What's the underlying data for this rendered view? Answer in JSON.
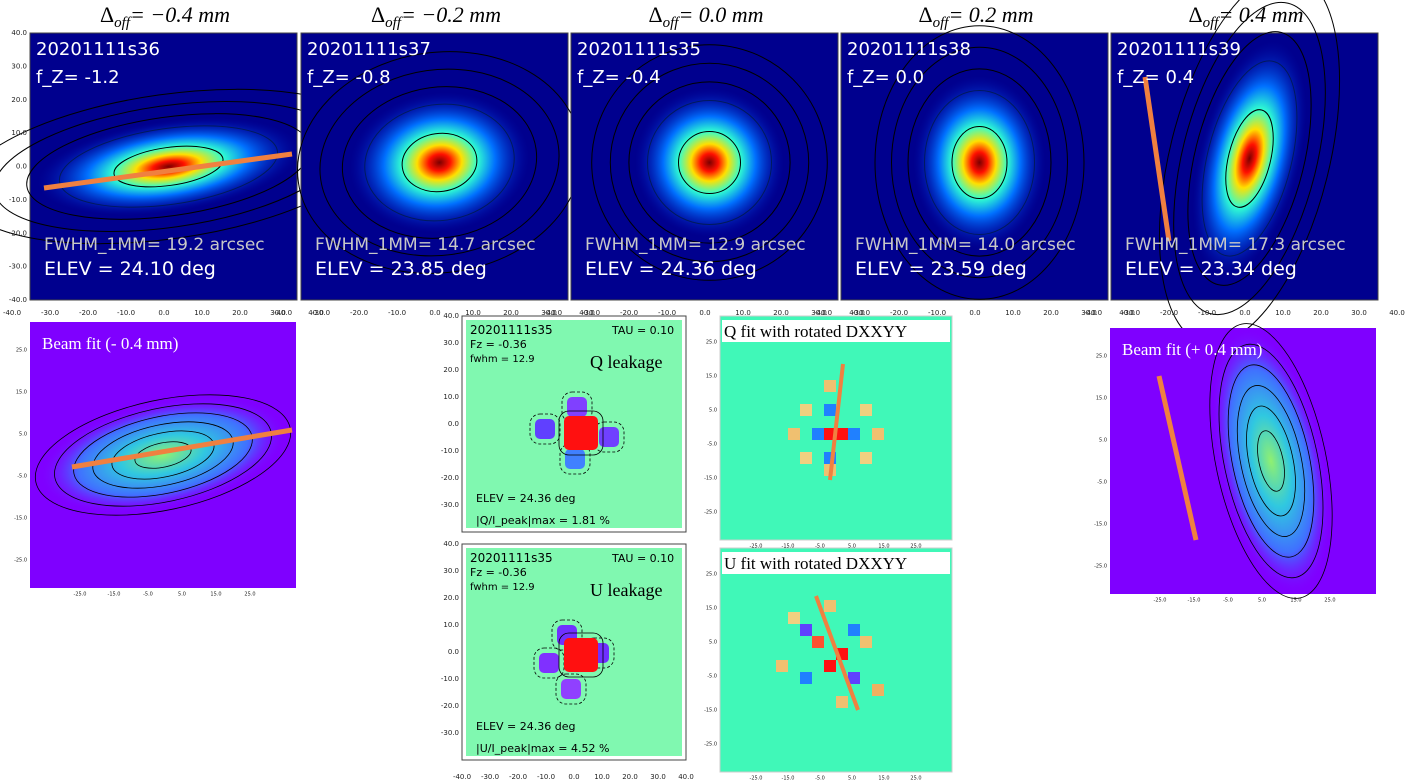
{
  "top_panels": [
    {
      "header": {
        "symbol": "Δ",
        "subscript": "off",
        "text": "= −0.4 mm"
      },
      "scan": "20201111s36",
      "fz": "f_Z= -1.2",
      "fwhm": "FWHM_1MM= 19.2 arcsec",
      "elev": "ELEV = 24.10 deg"
    },
    {
      "header": {
        "symbol": "Δ",
        "subscript": "off",
        "text": "= −0.2 mm"
      },
      "scan": "20201111s37",
      "fz": "f_Z= -0.8",
      "fwhm": "FWHM_1MM= 14.7 arcsec",
      "elev": "ELEV = 23.85 deg"
    },
    {
      "header": {
        "symbol": "Δ",
        "subscript": "off",
        "text": "= 0.0 mm"
      },
      "scan": "20201111s35",
      "fz": "f_Z= -0.4",
      "fwhm": "FWHM_1MM= 12.9 arcsec",
      "elev": "ELEV = 24.36 deg"
    },
    {
      "header": {
        "symbol": "Δ",
        "subscript": "off",
        "text": "= 0.2 mm"
      },
      "scan": "20201111s38",
      "fz": "f_Z= 0.0",
      "fwhm": "FWHM_1MM= 14.0 arcsec",
      "elev": "ELEV = 23.59 deg"
    },
    {
      "header": {
        "symbol": "Δ",
        "subscript": "off",
        "text": "= 0.4 mm"
      },
      "scan": "20201111s39",
      "fz": "f_Z= 0.4",
      "fwhm": "FWHM_1MM= 17.3 arcsec",
      "elev": "ELEV = 23.34 deg"
    }
  ],
  "top_axis": {
    "y_ticks": [
      "40.0",
      "30.0",
      "20.0",
      "10.0",
      "0.0",
      "-10.0",
      "-20.0",
      "-30.0",
      "-40.0"
    ],
    "x_ticks": [
      "-40.0",
      "-30.0",
      "-20.0",
      "-10.0",
      "0.0",
      "10.0",
      "20.0",
      "30.0",
      "40.0"
    ]
  },
  "beam_fits": [
    {
      "label": "Beam fit (- 0.4 mm)"
    },
    {
      "label": "Beam fit (+ 0.4 mm)"
    }
  ],
  "fit_axis": {
    "y_ticks": [
      "25.0",
      "15.0",
      "5.0",
      "-5.0",
      "-15.0",
      "-25.0"
    ],
    "x_ticks": [
      "-25.0",
      "-15.0",
      "-5.0",
      "5.0",
      "15.0",
      "25.0"
    ]
  },
  "leakage_panels": [
    {
      "scan": "20201111s35",
      "tau": "TAU = 0.10",
      "fz": "Fz = -0.36",
      "fwhm": "fwhm = 12.9",
      "title": "Q leakage",
      "elev": "ELEV = 24.36 deg",
      "peak": "|Q/I_peak|max = 1.81 %"
    },
    {
      "scan": "20201111s35",
      "tau": "TAU = 0.10",
      "fz": "Fz = -0.36",
      "fwhm": "fwhm = 12.9",
      "title": "U leakage",
      "elev": "ELEV = 24.36 deg",
      "peak": "|U/I_peak|max = 4.52 %"
    }
  ],
  "leakage_axis": {
    "y_ticks": [
      "40.0",
      "30.0",
      "20.0",
      "10.0",
      "0.0",
      "-10.0",
      "-20.0",
      "-30.0"
    ],
    "x_ticks": [
      "-40.0",
      "-30.0",
      "-20.0",
      "-10.0",
      "0.0",
      "10.0",
      "20.0",
      "30.0",
      "40.0"
    ]
  },
  "model_fits": [
    {
      "label": "Q fit with rotated DXXYY"
    },
    {
      "label": "U fit with rotated DXXYY"
    }
  ]
}
